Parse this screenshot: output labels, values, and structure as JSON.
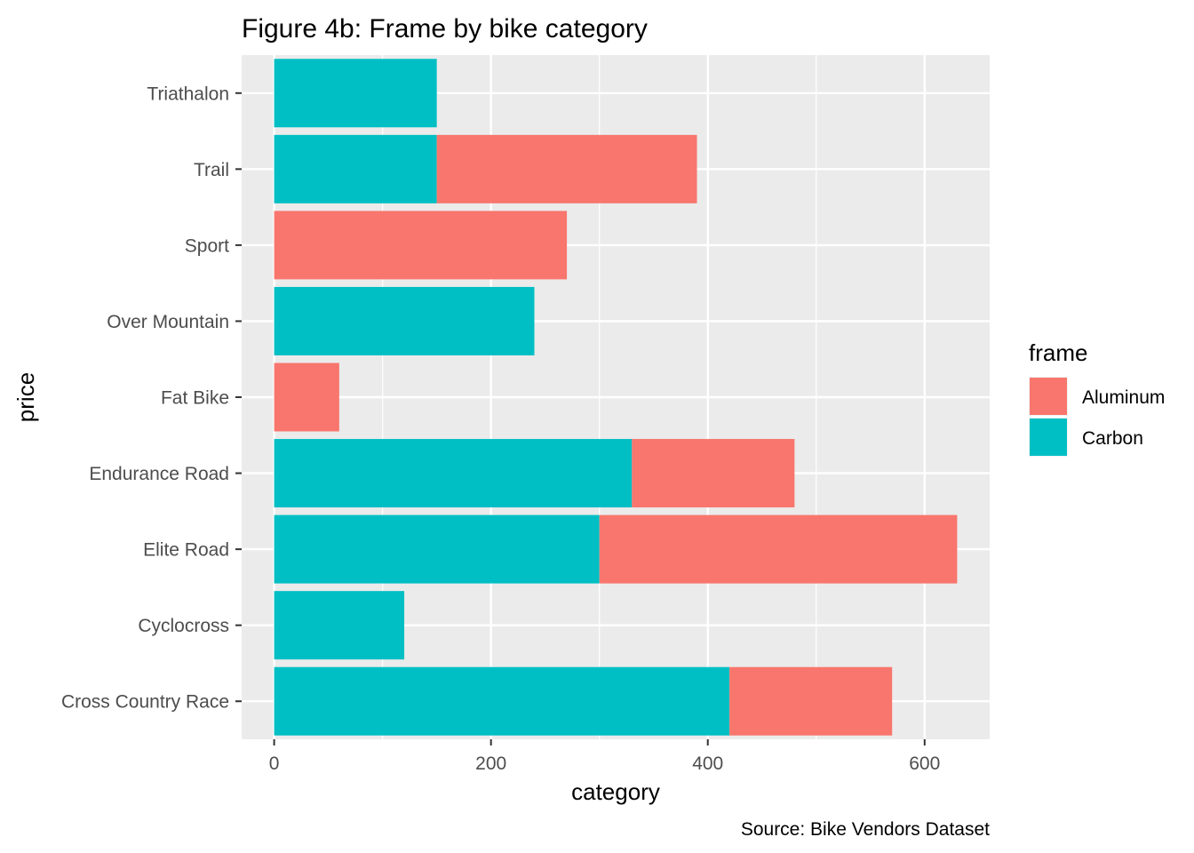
{
  "chart_data": {
    "type": "bar",
    "orientation": "horizontal",
    "stacked": true,
    "title": "Figure 4b: Frame by bike category",
    "xlabel": "category",
    "ylabel": "price",
    "caption": "Source: Bike Vendors Dataset",
    "categories": [
      "Cross Country Race",
      "Cyclocross",
      "Elite Road",
      "Endurance Road",
      "Fat Bike",
      "Over Mountain",
      "Sport",
      "Trail",
      "Triathalon"
    ],
    "series": [
      {
        "name": "Carbon",
        "color": "#00BFC4",
        "values": [
          420,
          120,
          300,
          330,
          0,
          240,
          0,
          150,
          150
        ]
      },
      {
        "name": "Aluminum",
        "color": "#F8766D",
        "values": [
          150,
          0,
          330,
          150,
          60,
          0,
          270,
          240,
          0
        ]
      }
    ],
    "xlim": [
      -30,
      660
    ],
    "xticks": [
      0,
      200,
      400,
      600
    ],
    "grid": true,
    "legend": {
      "title": "frame",
      "placement": "right",
      "items": [
        {
          "label": "Aluminum",
          "color": "#F8766D"
        },
        {
          "label": "Carbon",
          "color": "#00BFC4"
        }
      ]
    },
    "colors": {
      "panel_background": "#EBEBEB",
      "grid": "#FFFFFF"
    }
  }
}
